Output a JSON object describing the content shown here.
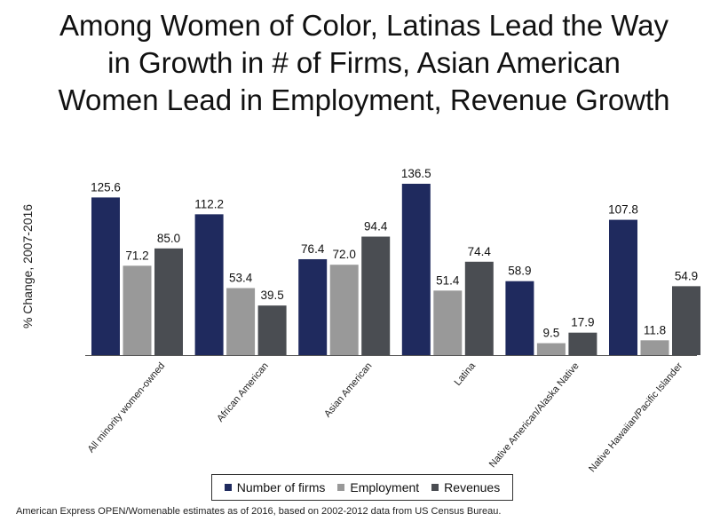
{
  "title_lines": [
    "Among Women of Color, Latinas Lead the Way",
    "in Growth in # of Firms, Asian American",
    "Women Lead in Employment, Revenue Growth"
  ],
  "source": "American Express OPEN/Womenable estimates as of 2016, based on 2002-2012 data from US Census Bureau.",
  "chart_data": {
    "type": "bar",
    "title": "Among Women of Color, Latinas Lead the Way in Growth in # of Firms, Asian American Women Lead in Employment, Revenue Growth",
    "ylabel": "% Change, 2007-2016",
    "xlabel": "",
    "ylim": [
      0,
      140
    ],
    "grid": false,
    "legend_position": "bottom",
    "categories": [
      "All minority women-owned",
      "African American",
      "Asian American",
      "Latina",
      "Native American/Alaska Native",
      "Native Hawaiian/Pacific Islander"
    ],
    "series": [
      {
        "name": "Number of firms",
        "color": "#1f2a5e",
        "values": [
          125.6,
          112.2,
          76.4,
          136.5,
          58.9,
          107.8
        ]
      },
      {
        "name": "Employment",
        "color": "#999999",
        "values": [
          71.2,
          53.4,
          72.0,
          51.4,
          9.5,
          11.8
        ]
      },
      {
        "name": "Revenues",
        "color": "#4a4d52",
        "values": [
          85.0,
          39.5,
          94.4,
          74.4,
          17.9,
          54.9
        ]
      }
    ]
  }
}
